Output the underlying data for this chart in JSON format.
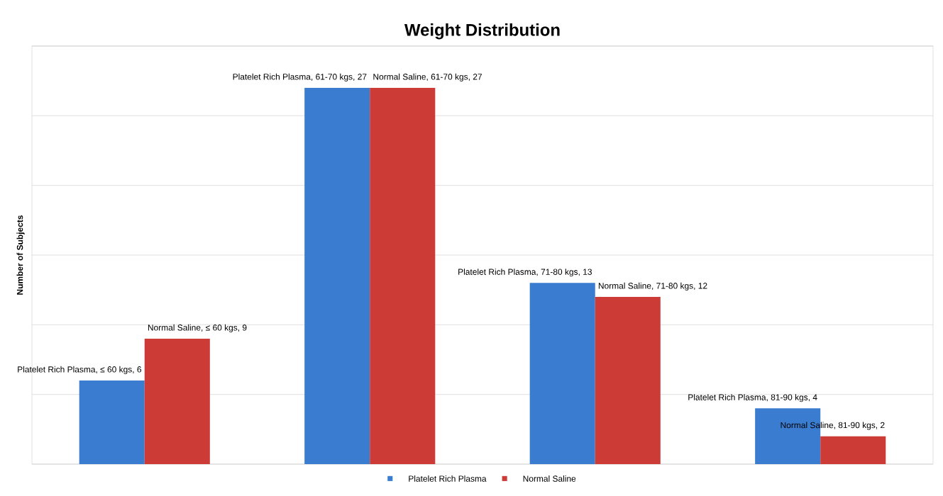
{
  "chart_data": {
    "type": "bar",
    "title": "Weight Distribution",
    "ylabel": "Number of Subjects",
    "categories": [
      null,
      null,
      null,
      null
    ],
    "series": [
      {
        "name": "Platelet Rich Plasma",
        "color": "#3a7dd0",
        "values": [
          6,
          27,
          13,
          4
        ],
        "value_labels": [
          "Platelet Rich Plasma, ≤ 60  kgs, 6",
          "Platelet Rich Plasma, 61-70 kgs, 27",
          "Platelet Rich Plasma, 71-80 kgs, 13",
          "Platelet Rich Plasma, 81-90 kgs, 4"
        ]
      },
      {
        "name": "Normal Saline",
        "color": "#cc3b36",
        "values": [
          9,
          27,
          12,
          2
        ],
        "value_labels": [
          "Normal Saline, ≤ 60  kgs, 9",
          "Normal Saline, 61-70 kgs, 27",
          "Normal Saline, 71-80 kgs, 12",
          "Normal Saline, 81-90 kgs, 2"
        ]
      }
    ],
    "ylim": [
      0,
      30
    ],
    "yticks": [
      {
        "value": 0,
        "label": null
      },
      {
        "value": 5,
        "label": null
      },
      {
        "value": 10,
        "label": null
      },
      {
        "value": 15,
        "label": null
      },
      {
        "value": 20,
        "label": null
      },
      {
        "value": 25,
        "label": null
      },
      {
        "value": 30,
        "label": null
      }
    ],
    "grid": "y",
    "legend": "bottom"
  }
}
